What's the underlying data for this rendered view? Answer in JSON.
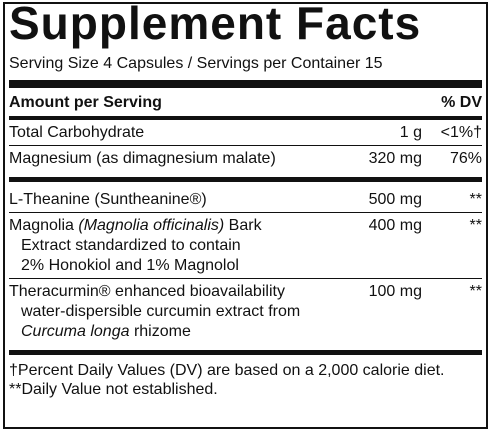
{
  "title": "Supplement Facts",
  "serving": "Serving Size 4 Capsules / Servings per Container 15",
  "header": {
    "amount": "Amount per Serving",
    "dv": "% DV"
  },
  "rows": [
    {
      "name": [
        {
          "text": "Total Carbohydrate"
        }
      ],
      "detail": [],
      "amount": "1 g",
      "dv": "<1%†"
    },
    {
      "name": [
        {
          "text": "Magnesium (as dimagnesium malate)"
        }
      ],
      "detail": [],
      "amount": "320 mg",
      "dv": "76%"
    },
    {
      "name": [
        {
          "text": "L-Theanine (Suntheanine®)"
        }
      ],
      "detail": [],
      "amount": "500 mg",
      "dv": "**"
    },
    {
      "name": [
        {
          "text": "Magnolia "
        },
        {
          "text": "(Magnolia officinalis)",
          "italic": true
        },
        {
          "text": " Bark"
        }
      ],
      "detail": [
        [
          {
            "text": "Extract standardized to contain"
          }
        ],
        [
          {
            "text": "2% Honokiol and 1% Magnolol"
          }
        ]
      ],
      "amount": "400 mg",
      "dv": "**"
    },
    {
      "name": [
        {
          "text": "Theracurmin® enhanced bioavailability"
        }
      ],
      "detail": [
        [
          {
            "text": "water-dispersible curcumin extract from"
          }
        ],
        [
          {
            "text": "Curcuma longa",
            "italic": true
          },
          {
            "text": " rhizome"
          }
        ]
      ],
      "amount": "100 mg",
      "dv": "**"
    }
  ],
  "footnotes": [
    "†Percent Daily Values (DV) are based on a 2,000 calorie diet.",
    "**Daily Value not established."
  ]
}
